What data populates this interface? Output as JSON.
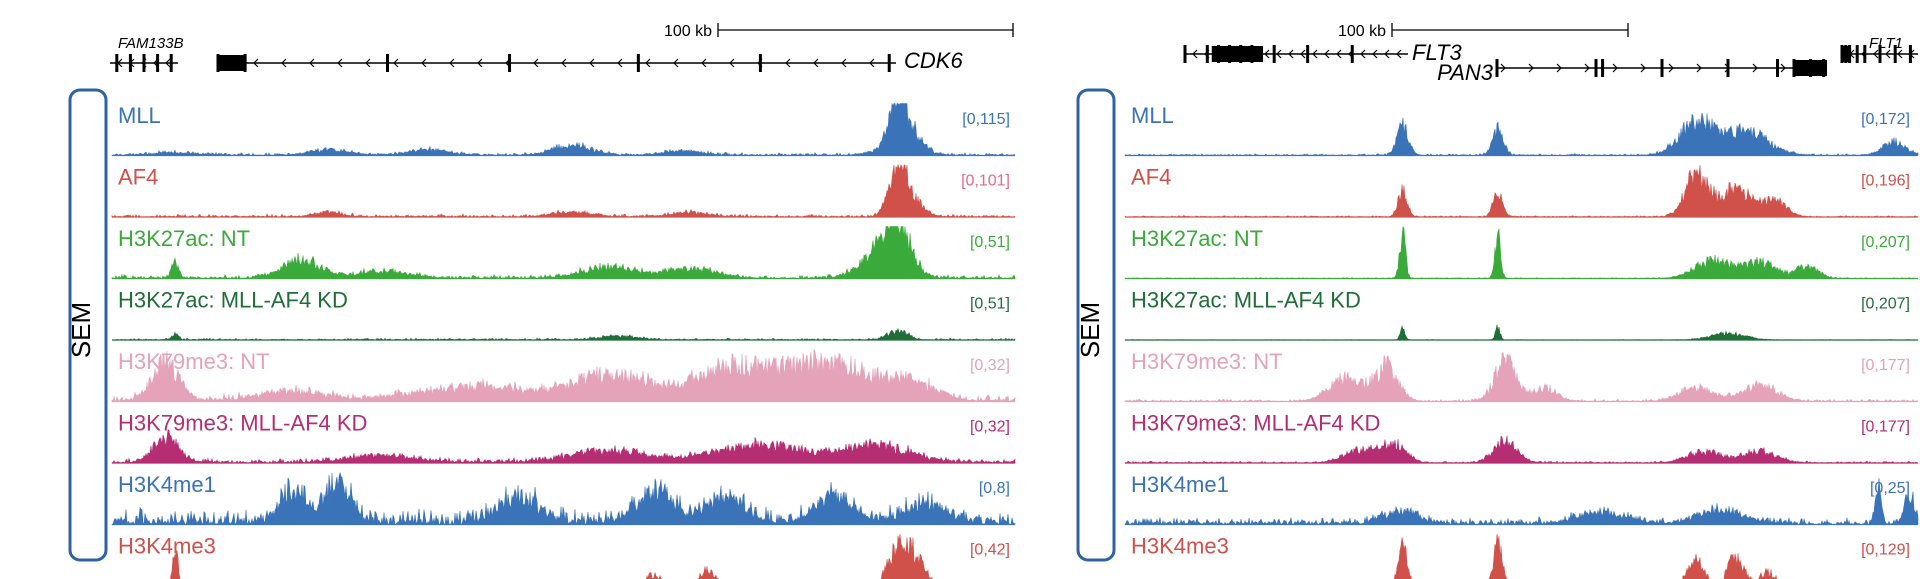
{
  "chart_data": [
    {
      "type": "area",
      "panel": "left",
      "sample_label": "SEM",
      "scalebar_label": "100 kb",
      "genes": [
        {
          "name": "FAM133B",
          "strand": "-"
        },
        {
          "name": "CDK6",
          "strand": "-"
        }
      ],
      "tracks": [
        {
          "name": "MLL",
          "range_label": "[0,115]",
          "ymax": 115,
          "color": "#3a73b8",
          "range_color": "#3a73b8",
          "peaks": [
            [
              0.07,
              0.05,
              0.04
            ],
            [
              0.24,
              0.12,
              0.03
            ],
            [
              0.35,
              0.12,
              0.03
            ],
            [
              0.51,
              0.22,
              0.03
            ],
            [
              0.63,
              0.1,
              0.03
            ],
            [
              0.87,
              0.18,
              0.03
            ],
            [
              0.87,
              1.0,
              0.012
            ],
            [
              0.88,
              0.45,
              0.02
            ]
          ],
          "noise": 0.06
        },
        {
          "name": "AF4",
          "range_label": "[0,101]",
          "ymax": 101,
          "color": "#d0504a",
          "range_color": "#e26a8a",
          "peaks": [
            [
              0.24,
              0.1,
              0.02
            ],
            [
              0.51,
              0.1,
              0.03
            ],
            [
              0.64,
              0.09,
              0.03
            ],
            [
              0.87,
              1.0,
              0.012
            ],
            [
              0.88,
              0.5,
              0.02
            ]
          ],
          "noise": 0.06
        },
        {
          "name": "H3K27ac: NT",
          "range_label": "[0,51]",
          "ymax": 51,
          "color": "#3aaa3a",
          "range_color": "#3aaa3a",
          "peaks": [
            [
              0.07,
              0.35,
              0.005
            ],
            [
              0.21,
              0.4,
              0.03
            ],
            [
              0.3,
              0.15,
              0.04
            ],
            [
              0.55,
              0.25,
              0.04
            ],
            [
              0.64,
              0.2,
              0.04
            ],
            [
              0.87,
              1.0,
              0.02
            ],
            [
              0.85,
              0.5,
              0.03
            ]
          ],
          "noise": 0.08
        },
        {
          "name": "H3K27ac: MLL-AF4 KD",
          "range_label": "[0,51]",
          "ymax": 51,
          "color": "#1f6e38",
          "range_color": "#1f6e38",
          "peaks": [
            [
              0.07,
              0.12,
              0.005
            ],
            [
              0.56,
              0.08,
              0.03
            ],
            [
              0.87,
              0.2,
              0.015
            ]
          ],
          "noise": 0.04
        },
        {
          "name": "H3K79me3: NT",
          "range_label": "[0,32]",
          "ymax": 32,
          "color": "#e4a3b8",
          "range_color": "#e4a3b8",
          "peaks": [
            [
              0.06,
              0.85,
              0.02
            ],
            [
              0.2,
              0.2,
              0.05
            ],
            [
              0.4,
              0.3,
              0.08
            ],
            [
              0.55,
              0.55,
              0.06
            ],
            [
              0.7,
              0.8,
              0.07
            ],
            [
              0.8,
              0.75,
              0.05
            ],
            [
              0.88,
              0.45,
              0.04
            ]
          ],
          "noise": 0.15
        },
        {
          "name": "H3K79me3: MLL-AF4 KD",
          "range_label": "[0,32]",
          "ymax": 32,
          "color": "#b52d72",
          "range_color": "#b52d72",
          "peaks": [
            [
              0.06,
              0.55,
              0.02
            ],
            [
              0.3,
              0.15,
              0.05
            ],
            [
              0.55,
              0.25,
              0.06
            ],
            [
              0.72,
              0.4,
              0.07
            ],
            [
              0.85,
              0.35,
              0.05
            ]
          ],
          "noise": 0.1
        },
        {
          "name": "H3K4me1",
          "range_label": "[0,8]",
          "ymax": 8,
          "color": "#3a73b8",
          "range_color": "#3a73b8",
          "peaks": [
            [
              0.2,
              0.7,
              0.02
            ],
            [
              0.25,
              0.85,
              0.02
            ],
            [
              0.45,
              0.55,
              0.03
            ],
            [
              0.6,
              0.65,
              0.03
            ],
            [
              0.68,
              0.55,
              0.03
            ],
            [
              0.8,
              0.55,
              0.03
            ],
            [
              0.9,
              0.4,
              0.03
            ]
          ],
          "noise": 0.35
        },
        {
          "name": "H3K4me3",
          "range_label": "[0,42]",
          "ymax": 42,
          "color": "#d0504a",
          "range_color": "#d0504a",
          "peaks": [
            [
              0.07,
              0.9,
              0.004
            ],
            [
              0.6,
              0.25,
              0.012
            ],
            [
              0.66,
              0.35,
              0.012
            ],
            [
              0.87,
              0.85,
              0.015
            ],
            [
              0.89,
              0.6,
              0.015
            ]
          ],
          "noise": 0.02
        }
      ]
    },
    {
      "type": "area",
      "panel": "right",
      "sample_label": "SEM",
      "scalebar_label": "100 kb",
      "genes": [
        {
          "name": "FLT3",
          "strand": "-"
        },
        {
          "name": "PAN3",
          "strand": "+"
        },
        {
          "name": "FLT1",
          "strand": "-"
        }
      ],
      "tracks": [
        {
          "name": "MLL",
          "range_label": "[0,172]",
          "ymax": 172,
          "color": "#3a73b8",
          "range_color": "#3a73b8",
          "peaks": [
            [
              0.35,
              0.65,
              0.01
            ],
            [
              0.47,
              0.55,
              0.01
            ],
            [
              0.72,
              0.7,
              0.03
            ],
            [
              0.78,
              0.55,
              0.04
            ],
            [
              0.97,
              0.3,
              0.02
            ]
          ],
          "noise": 0.04
        },
        {
          "name": "AF4",
          "range_label": "[0,196]",
          "ymax": 196,
          "color": "#d0504a",
          "range_color": "#d0504a",
          "peaks": [
            [
              0.35,
              0.55,
              0.008
            ],
            [
              0.47,
              0.55,
              0.008
            ],
            [
              0.72,
              0.9,
              0.02
            ],
            [
              0.77,
              0.6,
              0.03
            ],
            [
              0.82,
              0.35,
              0.02
            ]
          ],
          "noise": 0.03
        },
        {
          "name": "H3K27ac: NT",
          "range_label": "[0,207]",
          "ymax": 207,
          "color": "#3aaa3a",
          "range_color": "#3aaa3a",
          "peaks": [
            [
              0.35,
              1.0,
              0.005
            ],
            [
              0.47,
              0.95,
              0.005
            ],
            [
              0.74,
              0.4,
              0.03
            ],
            [
              0.8,
              0.35,
              0.03
            ],
            [
              0.86,
              0.25,
              0.02
            ]
          ],
          "noise": 0.02
        },
        {
          "name": "H3K27ac: MLL-AF4 KD",
          "range_label": "[0,207]",
          "ymax": 207,
          "color": "#1f6e38",
          "range_color": "#1f6e38",
          "peaks": [
            [
              0.35,
              0.25,
              0.004
            ],
            [
              0.47,
              0.3,
              0.004
            ],
            [
              0.76,
              0.15,
              0.03
            ]
          ],
          "noise": 0.01
        },
        {
          "name": "H3K79me3: NT",
          "range_label": "[0,177]",
          "ymax": 177,
          "color": "#e4a3b8",
          "range_color": "#e4a3b8",
          "peaks": [
            [
              0.28,
              0.5,
              0.03
            ],
            [
              0.33,
              0.75,
              0.02
            ],
            [
              0.48,
              0.85,
              0.02
            ],
            [
              0.53,
              0.3,
              0.02
            ],
            [
              0.72,
              0.3,
              0.03
            ],
            [
              0.8,
              0.35,
              0.03
            ]
          ],
          "noise": 0.05
        },
        {
          "name": "H3K79me3: MLL-AF4 KD",
          "range_label": "[0,177]",
          "ymax": 177,
          "color": "#b52d72",
          "range_color": "#b52d72",
          "peaks": [
            [
              0.3,
              0.3,
              0.03
            ],
            [
              0.34,
              0.4,
              0.02
            ],
            [
              0.48,
              0.5,
              0.02
            ],
            [
              0.73,
              0.25,
              0.03
            ],
            [
              0.8,
              0.25,
              0.03
            ]
          ],
          "noise": 0.04
        },
        {
          "name": "H3K4me1",
          "range_label": "[0,25]",
          "ymax": 25,
          "color": "#3a73b8",
          "range_color": "#3a73b8",
          "peaks": [
            [
              0.35,
              0.3,
              0.03
            ],
            [
              0.6,
              0.25,
              0.04
            ],
            [
              0.75,
              0.3,
              0.04
            ],
            [
              0.95,
              0.85,
              0.005
            ],
            [
              0.99,
              0.6,
              0.01
            ]
          ],
          "noise": 0.15
        },
        {
          "name": "H3K4me3",
          "range_label": "[0,129]",
          "ymax": 129,
          "color": "#d0504a",
          "range_color": "#d0504a",
          "peaks": [
            [
              0.35,
              0.95,
              0.008
            ],
            [
              0.47,
              0.95,
              0.008
            ],
            [
              0.72,
              0.55,
              0.015
            ],
            [
              0.77,
              0.6,
              0.015
            ],
            [
              0.81,
              0.3,
              0.015
            ]
          ],
          "noise": 0.02
        }
      ]
    }
  ]
}
